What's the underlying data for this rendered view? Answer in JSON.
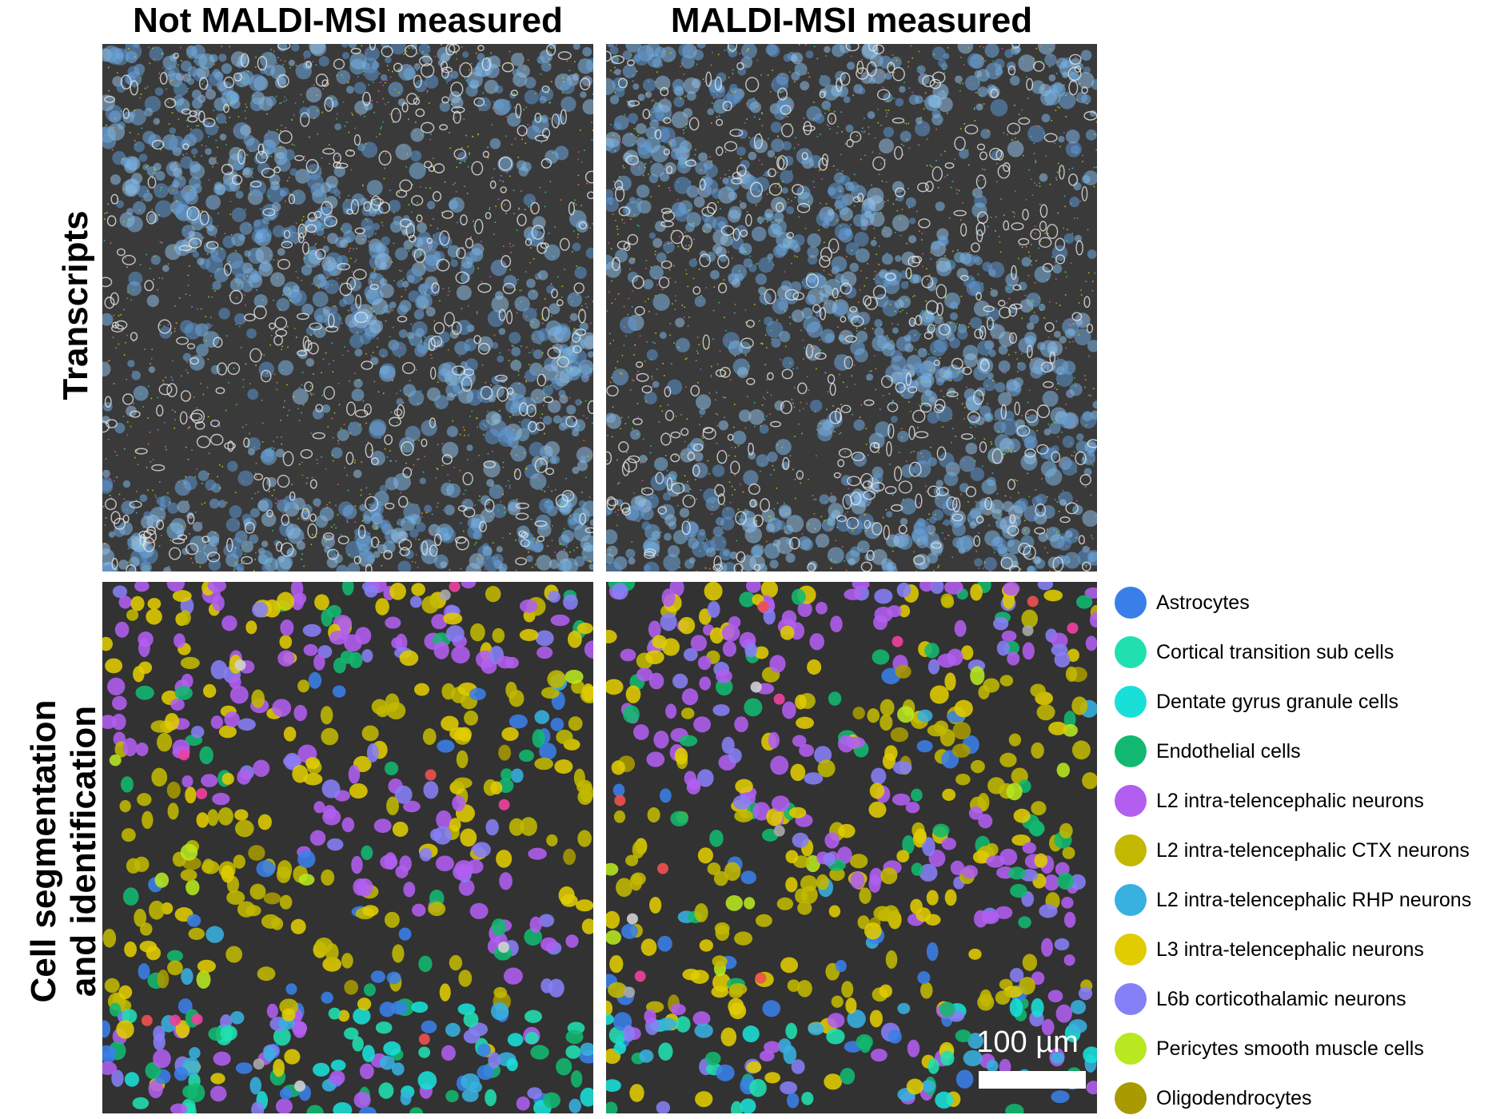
{
  "columns": {
    "left_title": "Not MALDI-MSI measured",
    "right_title": "MALDI-MSI measured"
  },
  "rows": {
    "top_label": "Transcripts",
    "bottom_label_line1": "Cell segmentation",
    "bottom_label_line2": "and identification"
  },
  "scale_bar": {
    "label": "100 µm"
  },
  "legend": [
    {
      "label": "Astrocytes",
      "color": "#3a7fe8"
    },
    {
      "label": "Cortical transition sub cells",
      "color": "#20e0b0"
    },
    {
      "label": "Dentate gyrus granule cells",
      "color": "#18e0d8"
    },
    {
      "label": "Endothelial cells",
      "color": "#12b870"
    },
    {
      "label": "L2 intra-telencephalic neurons",
      "color": "#b25ef0"
    },
    {
      "label": "L2 intra-telencephalic CTX neurons",
      "color": "#c2b800"
    },
    {
      "label": "L2 intra-telencephalic RHP neurons",
      "color": "#38b0e0"
    },
    {
      "label": "L3 intra-telencephalic neurons",
      "color": "#e0cc00"
    },
    {
      "label": "L6b corticothalamic neurons",
      "color": "#8680f6"
    },
    {
      "label": "Pericytes smooth muscle cells",
      "color": "#b8e820"
    },
    {
      "label": "Oligodendrocytes",
      "color": "#a89a00"
    }
  ]
}
